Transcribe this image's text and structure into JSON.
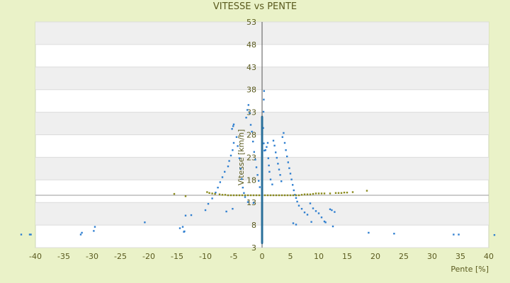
{
  "chart_data": {
    "type": "scatter",
    "title": "VITESSE vs PENTE",
    "xlabel": "Pente [%]",
    "ylabel": "Vitesse [km/h]",
    "xlim": [
      -40,
      40
    ],
    "ylim": [
      3,
      53
    ],
    "xticks": [
      -40,
      -35,
      -30,
      -25,
      -20,
      -15,
      -10,
      -5,
      0,
      5,
      10,
      15,
      20,
      25,
      30,
      35,
      40
    ],
    "yticks": [
      3,
      8,
      13,
      18,
      23,
      28,
      33,
      38,
      43,
      48,
      53
    ],
    "grid": "horizontal alternating bands",
    "legend": "none",
    "series": [
      {
        "color": "#2f7fd0",
        "points": [
          [
            -42.5,
            5.9
          ],
          [
            -41,
            5.9
          ],
          [
            -40.8,
            5.9
          ],
          [
            -32,
            5.9
          ],
          [
            -31.8,
            6.3
          ],
          [
            -29.7,
            6.7
          ],
          [
            -29.5,
            7.6
          ],
          [
            -20.7,
            8.6
          ],
          [
            -14.5,
            7.3
          ],
          [
            -14,
            7.6
          ],
          [
            -13.8,
            6.5
          ],
          [
            -13.7,
            6.6
          ],
          [
            -13.5,
            10.1
          ],
          [
            -12.5,
            10.2
          ],
          [
            -10,
            11.3
          ],
          [
            -9.5,
            12.7
          ],
          [
            -8.8,
            13.9
          ],
          [
            -8.2,
            15.2
          ],
          [
            -7.8,
            16.3
          ],
          [
            -7.4,
            17.5
          ],
          [
            -7,
            18.6
          ],
          [
            -6.6,
            19.8
          ],
          [
            -6,
            21
          ],
          [
            -5.8,
            22.2
          ],
          [
            -5.5,
            23.4
          ],
          [
            -5.2,
            24.6
          ],
          [
            -5,
            26.2
          ],
          [
            -5.3,
            29.3
          ],
          [
            -5.1,
            29.9
          ],
          [
            -5,
            30.3
          ],
          [
            -4.5,
            27.5
          ],
          [
            -4.3,
            25.5
          ],
          [
            -4,
            22.8
          ],
          [
            -3.8,
            20.5
          ],
          [
            -3.6,
            18.2
          ],
          [
            -3.4,
            16.3
          ],
          [
            -3.2,
            15.1
          ],
          [
            -3,
            14.2
          ],
          [
            -2.8,
            31.8
          ],
          [
            -2.6,
            33.5
          ],
          [
            -2.4,
            34.6
          ],
          [
            -2.2,
            32.8
          ],
          [
            -2,
            30.2
          ],
          [
            -1.8,
            28.7
          ],
          [
            -1.6,
            26.5
          ],
          [
            -1.4,
            24.2
          ],
          [
            -1.2,
            22.5
          ],
          [
            -1,
            20.8
          ],
          [
            -0.8,
            19.1
          ],
          [
            -0.6,
            17.8
          ],
          [
            -0.4,
            16.4
          ],
          [
            -2.5,
            13.1
          ],
          [
            -1.5,
            12.9
          ],
          [
            -6.3,
            11
          ],
          [
            -5.2,
            11.6
          ],
          [
            0.3,
            35.8
          ],
          [
            0.35,
            37.7
          ],
          [
            0.25,
            33.1
          ],
          [
            0.2,
            29.5
          ],
          [
            0.3,
            26.1
          ],
          [
            0.4,
            24.5
          ],
          [
            0.6,
            24.6
          ],
          [
            0.8,
            25.3
          ],
          [
            1,
            26.2
          ],
          [
            1.1,
            22.8
          ],
          [
            1.2,
            21.2
          ],
          [
            1.3,
            19.8
          ],
          [
            1.5,
            18.1
          ],
          [
            1.8,
            17
          ],
          [
            2,
            26.7
          ],
          [
            2.2,
            25.6
          ],
          [
            2.4,
            24.1
          ],
          [
            2.6,
            22.9
          ],
          [
            2.8,
            21.6
          ],
          [
            3,
            20.3
          ],
          [
            3.2,
            19.1
          ],
          [
            3.4,
            17.7
          ],
          [
            3.6,
            27.5
          ],
          [
            3.8,
            28.4
          ],
          [
            4,
            26.2
          ],
          [
            4.2,
            24.6
          ],
          [
            4.4,
            23.2
          ],
          [
            4.6,
            21.9
          ],
          [
            4.8,
            20.6
          ],
          [
            5,
            19.4
          ],
          [
            5.2,
            18.1
          ],
          [
            5.4,
            16.9
          ],
          [
            5.6,
            15.7
          ],
          [
            5.8,
            14.7
          ],
          [
            6,
            14
          ],
          [
            6.2,
            13.2
          ],
          [
            6.5,
            12.3
          ],
          [
            7,
            11.6
          ],
          [
            7.5,
            10.8
          ],
          [
            8,
            10.3
          ],
          [
            8.5,
            12.8
          ],
          [
            9,
            11.7
          ],
          [
            9.5,
            11.1
          ],
          [
            10,
            10.6
          ],
          [
            10.5,
            9.7
          ],
          [
            11,
            8.8
          ],
          [
            11.2,
            8.6
          ],
          [
            12,
            11.5
          ],
          [
            12.3,
            11.3
          ],
          [
            12.8,
            10.9
          ],
          [
            12.5,
            7.7
          ],
          [
            8.7,
            8.7
          ],
          [
            5.5,
            8.4
          ],
          [
            6,
            8.1
          ],
          [
            18.8,
            6.3
          ],
          [
            23.3,
            6.1
          ],
          [
            33.8,
            5.9
          ],
          [
            34.7,
            5.9
          ],
          [
            41,
            5.8
          ]
        ]
      },
      {
        "color": "#1f5f8a",
        "points": [
          [
            0,
            4
          ],
          [
            0,
            6
          ],
          [
            0,
            8
          ],
          [
            0,
            10
          ],
          [
            0,
            12
          ],
          [
            0,
            14
          ],
          [
            0,
            16
          ],
          [
            0,
            18
          ],
          [
            0,
            20
          ],
          [
            0,
            22
          ],
          [
            0,
            24
          ],
          [
            0,
            26
          ],
          [
            0,
            28
          ],
          [
            0,
            30
          ],
          [
            0,
            32
          ]
        ]
      },
      {
        "color": "#8a8a1c",
        "points": [
          [
            -15.5,
            14.9
          ],
          [
            -13.5,
            14.4
          ],
          [
            -9.7,
            15.3
          ],
          [
            -9.3,
            15.1
          ],
          [
            -8.8,
            15
          ],
          [
            -8.3,
            14.9
          ],
          [
            -7.5,
            14.8
          ],
          [
            -7,
            14.7
          ],
          [
            -6.5,
            14.7
          ],
          [
            -6,
            14.6
          ],
          [
            -5.5,
            14.6
          ],
          [
            -5,
            14.6
          ],
          [
            -4.5,
            14.6
          ],
          [
            -4,
            14.6
          ],
          [
            -3.5,
            14.6
          ],
          [
            -3,
            14.6
          ],
          [
            -2.5,
            14.6
          ],
          [
            -2,
            14.6
          ],
          [
            -1.5,
            14.6
          ],
          [
            -1,
            14.6
          ],
          [
            -0.5,
            14.6
          ],
          [
            0.5,
            14.6
          ],
          [
            1,
            14.6
          ],
          [
            1.5,
            14.6
          ],
          [
            2,
            14.6
          ],
          [
            2.5,
            14.6
          ],
          [
            3,
            14.6
          ],
          [
            3.5,
            14.6
          ],
          [
            4,
            14.6
          ],
          [
            4.5,
            14.6
          ],
          [
            5,
            14.6
          ],
          [
            5.5,
            14.6
          ],
          [
            6,
            14.6
          ],
          [
            6.5,
            14.6
          ],
          [
            7,
            14.7
          ],
          [
            7.5,
            14.8
          ],
          [
            8,
            14.8
          ],
          [
            8.5,
            14.8
          ],
          [
            9,
            14.9
          ],
          [
            9.5,
            15
          ],
          [
            10,
            15
          ],
          [
            10.5,
            15
          ],
          [
            11,
            15
          ],
          [
            12,
            15
          ],
          [
            13,
            15.1
          ],
          [
            13.5,
            15.1
          ],
          [
            14,
            15.1
          ],
          [
            14.5,
            15.2
          ],
          [
            15,
            15.2
          ],
          [
            16,
            15.3
          ],
          [
            18.5,
            15.6
          ]
        ]
      }
    ]
  }
}
